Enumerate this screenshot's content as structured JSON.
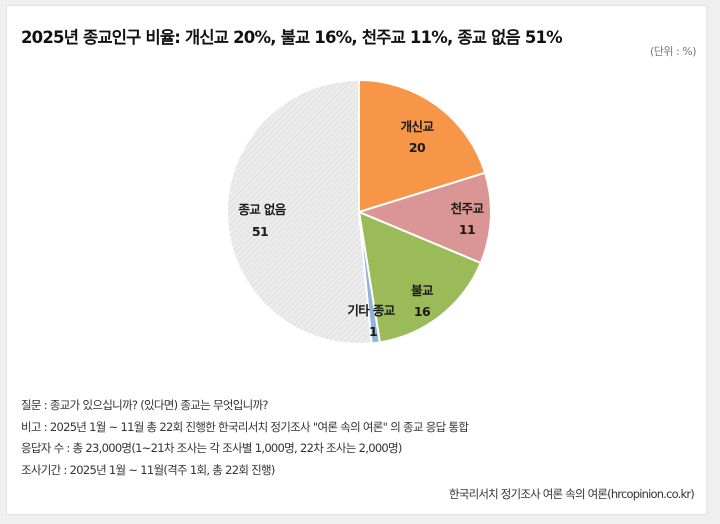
{
  "title": "2025년 종교인구 비율: 개신교 20%, 불교 16%, 천주교 11%, 종교 없음 51%",
  "unit": "(단위 : %)",
  "chart_data": {
    "type": "pie",
    "title": "2025년 종교인구 비율: 개신교 20%, 불교 16%, 천주교 11%, 종교 없음 51%",
    "unit": "%",
    "start_angle": "12 o'clock, clockwise",
    "categories": [
      "개신교",
      "천주교",
      "불교",
      "기타 종교",
      "종교 없음"
    ],
    "values": [
      20,
      11,
      16,
      1,
      51
    ],
    "colors": [
      "#F79646",
      "#DA9694",
      "#9BBB59",
      "#95B3D7",
      "#E6E6E6"
    ],
    "legend": "none (direct labels)"
  },
  "slices": [
    {
      "name": "개신교",
      "value": "20",
      "color": "#F79646"
    },
    {
      "name": "천주교",
      "value": "11",
      "color": "#DA9694"
    },
    {
      "name": "불교",
      "value": "16",
      "color": "#9BBB59"
    },
    {
      "name": "기타 종교",
      "value": "1",
      "color": "#95B3D7"
    },
    {
      "name": "종교 없음",
      "value": "51",
      "color": "#E6E6E6"
    }
  ],
  "notes": {
    "question": "질문 : 종교가 있으십니까? (있다면) 종교는 무엇입니까?",
    "remark": "비고 : 2025년 1월 ~ 11월 총 22회 진행한 한국리서치 정기조사 \"여론 속의 여론\" 의 종교 응답 통합",
    "respondents": "응답자 수 : 총 23,000명(1~21차 조사는 각 조사별 1,000명, 22차 조사는 2,000명)",
    "period": "조사기간 : 2025년 1월 ~ 11월(격주 1회, 총 22회 진행)"
  },
  "source": "한국리서치 정기조사 여론 속의 여론(hrcopinion.co.kr)"
}
